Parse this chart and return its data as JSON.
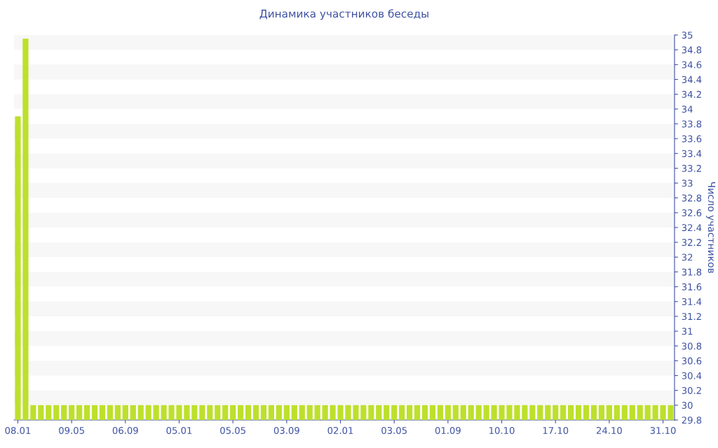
{
  "chart_data": {
    "type": "bar",
    "title": "Динамика участников беседы",
    "ylabel": "Число участников",
    "categories": [
      "08.01",
      null,
      null,
      null,
      null,
      null,
      null,
      "09.05",
      null,
      null,
      null,
      null,
      null,
      null,
      "06.09",
      null,
      null,
      null,
      null,
      null,
      null,
      "05.01",
      null,
      null,
      null,
      null,
      null,
      null,
      "05.05",
      null,
      null,
      null,
      null,
      null,
      null,
      "03.09",
      null,
      null,
      null,
      null,
      null,
      null,
      "02.01",
      null,
      null,
      null,
      null,
      null,
      null,
      "03.05",
      null,
      null,
      null,
      null,
      null,
      null,
      "01.09",
      null,
      null,
      null,
      null,
      null,
      null,
      "10.10",
      null,
      null,
      null,
      null,
      null,
      null,
      "17.10",
      null,
      null,
      null,
      null,
      null,
      null,
      "24.10",
      null,
      null,
      null,
      null,
      null,
      null,
      "31.10",
      null
    ],
    "series": [
      {
        "color": "#bde02c",
        "values": [
          33.9,
          34.95,
          30,
          30,
          30,
          30,
          30,
          30,
          30,
          30,
          30,
          30,
          30,
          30,
          30,
          30,
          30,
          30,
          30,
          30,
          30,
          30,
          30,
          30,
          30,
          30,
          30,
          30,
          30,
          30,
          30,
          30,
          30,
          30,
          30,
          30,
          30,
          30,
          30,
          30,
          30,
          30,
          30,
          30,
          30,
          30,
          30,
          30,
          30,
          30,
          30,
          30,
          30,
          30,
          30,
          30,
          30,
          30,
          30,
          30,
          30,
          30,
          30,
          30,
          30,
          30,
          30,
          30,
          30,
          30,
          30,
          30,
          30,
          30,
          30,
          30,
          30,
          30,
          30,
          30,
          30,
          30,
          30,
          30,
          30,
          30
        ]
      }
    ],
    "ylim": [
      29.8,
      35
    ],
    "yticks": [
      29.8,
      30,
      30.2,
      30.4,
      30.6,
      30.8,
      31,
      31.2,
      31.4,
      31.6,
      31.8,
      32,
      32.2,
      32.4,
      32.6,
      32.8,
      33,
      33.2,
      33.4,
      33.6,
      33.8,
      34,
      34.2,
      34.4,
      34.6,
      34.8,
      35
    ],
    "bands": [
      {
        "axis": "y",
        "from": 30,
        "to": 30.2,
        "color": "#f7f7f7"
      },
      {
        "axis": "y",
        "from": 30.4,
        "to": 30.6,
        "color": "#f7f7f7"
      },
      {
        "axis": "y",
        "from": 30.8,
        "to": 31,
        "color": "#f7f7f7"
      },
      {
        "axis": "y",
        "from": 31.2,
        "to": 31.4,
        "color": "#f7f7f7"
      },
      {
        "axis": "y",
        "from": 31.6,
        "to": 31.8,
        "color": "#f7f7f7"
      },
      {
        "axis": "y",
        "from": 32,
        "to": 32.2,
        "color": "#f7f7f7"
      },
      {
        "axis": "y",
        "from": 32.4,
        "to": 32.6,
        "color": "#f7f7f7"
      },
      {
        "axis": "y",
        "from": 32.8,
        "to": 33,
        "color": "#f7f7f7"
      },
      {
        "axis": "y",
        "from": 33.2,
        "to": 33.4,
        "color": "#f7f7f7"
      },
      {
        "axis": "y",
        "from": 33.6,
        "to": 33.8,
        "color": "#f7f7f7"
      },
      {
        "axis": "y",
        "from": 34,
        "to": 34.2,
        "color": "#f7f7f7"
      },
      {
        "axis": "y",
        "from": 34.4,
        "to": 34.6,
        "color": "#f7f7f7"
      },
      {
        "axis": "y",
        "from": 34.8,
        "to": 35,
        "color": "#f7f7f7"
      }
    ],
    "legend": false
  }
}
